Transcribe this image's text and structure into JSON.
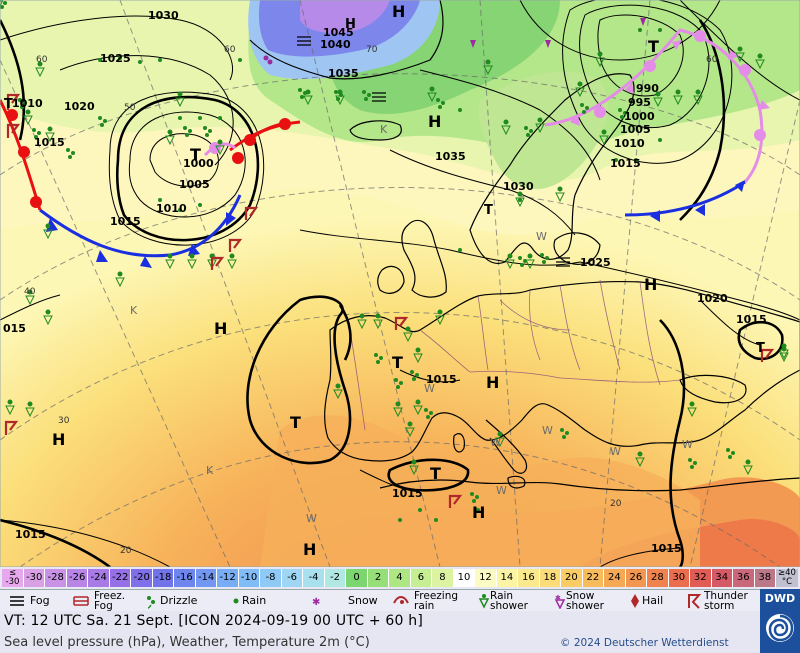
{
  "map": {
    "pressure_labels": [
      "1030",
      "1045",
      "1040",
      "1035",
      "1025",
      "1020",
      "1010",
      "1015",
      "1000",
      "1005",
      "1010",
      "1015",
      "990",
      "995",
      "1000",
      "1005",
      "1010",
      "1015",
      "1035",
      "1030",
      "1025",
      "1020",
      "1015",
      "1015",
      "1015",
      "1015",
      "1015",
      "015",
      "1015"
    ],
    "pressure_centers_H": [
      "H",
      "H",
      "H",
      "H",
      "H",
      "H",
      "H",
      "H",
      "H"
    ],
    "pressure_centers_T": [
      "T",
      "T",
      "T",
      "T",
      "T",
      "T",
      "T",
      "T"
    ],
    "temperature_labels": [
      "60",
      "70",
      "60",
      "50",
      "40",
      "30",
      "20",
      "20",
      "60"
    ],
    "weather_markers": [
      "K",
      "K",
      "K",
      "W",
      "W",
      "W",
      "W",
      "W",
      "W",
      "W",
      "W"
    ],
    "fronts": [
      "cold-front",
      "warm-front",
      "occluded-front",
      "occluded-front"
    ]
  },
  "temperature_scale": {
    "unit_label": "°C",
    "low_label": "≤ -30",
    "high_label": "≥40",
    "steps": [
      {
        "v": "-30",
        "c": "#d9a0e6"
      },
      {
        "v": "-28",
        "c": "#c992e6"
      },
      {
        "v": "-26",
        "c": "#b884e6"
      },
      {
        "v": "-24",
        "c": "#a77ae6"
      },
      {
        "v": "-22",
        "c": "#9670e6"
      },
      {
        "v": "-20",
        "c": "#7f6fe8"
      },
      {
        "v": "-18",
        "c": "#7074e8"
      },
      {
        "v": "-16",
        "c": "#6f85ee"
      },
      {
        "v": "-14",
        "c": "#7197f2"
      },
      {
        "v": "-12",
        "c": "#78acf4"
      },
      {
        "v": "-10",
        "c": "#82bcf6"
      },
      {
        "v": "-8",
        "c": "#8fcaf6"
      },
      {
        "v": "-6",
        "c": "#9ed6f4"
      },
      {
        "v": "-4",
        "c": "#a8e0ee"
      },
      {
        "v": "-2",
        "c": "#b2e8e2"
      },
      {
        "v": "0",
        "c": "#7bd670"
      },
      {
        "v": "2",
        "c": "#95de78"
      },
      {
        "v": "4",
        "c": "#aee684"
      },
      {
        "v": "6",
        "c": "#c6ee92"
      },
      {
        "v": "8",
        "c": "#dcf4a2"
      },
      {
        "v": "10",
        "c": "#ffffff"
      },
      {
        "v": "12",
        "c": "#fdfbc4"
      },
      {
        "v": "14",
        "c": "#fbf4a4"
      },
      {
        "v": "16",
        "c": "#fbea8c"
      },
      {
        "v": "18",
        "c": "#fbdc78"
      },
      {
        "v": "20",
        "c": "#f9cc66"
      },
      {
        "v": "22",
        "c": "#f7bb5c"
      },
      {
        "v": "24",
        "c": "#f5a954"
      },
      {
        "v": "26",
        "c": "#f3964f"
      },
      {
        "v": "28",
        "c": "#ef824d"
      },
      {
        "v": "30",
        "c": "#ea6e4e"
      },
      {
        "v": "32",
        "c": "#e05c54"
      },
      {
        "v": "34",
        "c": "#d65a66"
      },
      {
        "v": "36",
        "c": "#c9687a"
      },
      {
        "v": "38",
        "c": "#bb7888"
      }
    ]
  },
  "legend": {
    "fog": "Fog",
    "freezing_fog": [
      "Freez.",
      "Fog"
    ],
    "drizzle": "Drizzle",
    "rain": "Rain",
    "snow": "Snow",
    "freezing_rain": [
      "Freezing",
      "rain"
    ],
    "rain_shower": [
      "Rain",
      "shower"
    ],
    "snow_shower": [
      "Snow",
      "shower"
    ],
    "hail": "Hail",
    "thunderstorm": [
      "Thunder",
      "storm"
    ]
  },
  "info": {
    "valid_time": "VT: 12 UTC Sa.  21 Sept. [ICON 2024-09-19  00 UTC + 60 h]",
    "description": "Sea level pressure (hPa), Weather, Temperature 2m (°C)",
    "copyright": "© 2024 Deutscher Wetterdienst",
    "logo_text": "DWD"
  },
  "colors": {
    "cold_front": "#1a2fe0",
    "warm_front": "#e81010",
    "occluded_front": "#e38de8",
    "isobar": "#000000",
    "precip_green": "#1f8a1f",
    "brand_blue": "#1c4f9c"
  }
}
